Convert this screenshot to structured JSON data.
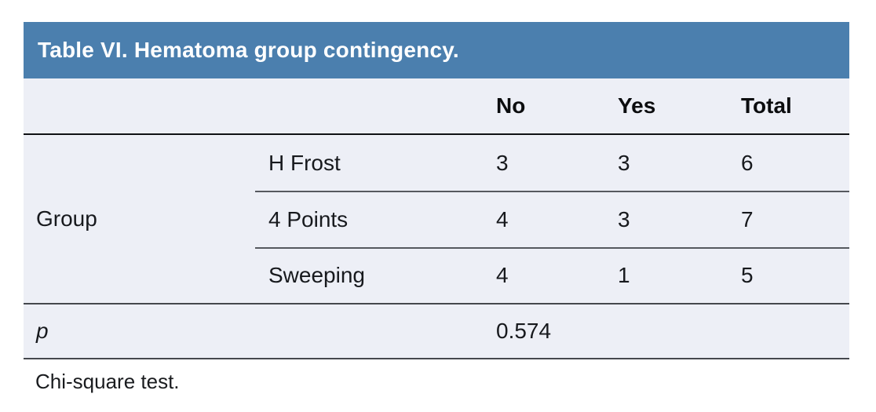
{
  "table": {
    "title": "Table VI. Hematoma group contingency.",
    "columns": {
      "c3": "No",
      "c4": "Yes",
      "c5": "Total"
    },
    "group_label": "Group",
    "rows": [
      {
        "label": "H Frost",
        "no": "3",
        "yes": "3",
        "total": "6"
      },
      {
        "label": "4 Points",
        "no": "4",
        "yes": "3",
        "total": "7"
      },
      {
        "label": "Sweeping",
        "no": "4",
        "yes": "1",
        "total": "5"
      }
    ],
    "p_row": {
      "label": "p",
      "value": "0.574"
    },
    "footnote": "Chi-square test.",
    "colors": {
      "title_bg": "#4b7fae",
      "title_text": "#ffffff",
      "row_bg": "#edeff6",
      "body_text": "#17191d"
    }
  },
  "chart_data": {
    "type": "table",
    "title": "Table VI. Hematoma group contingency.",
    "columns": [
      "",
      "",
      "No",
      "Yes",
      "Total"
    ],
    "rows": [
      [
        "Group",
        "H Frost",
        3,
        3,
        6
      ],
      [
        "Group",
        "4 Points",
        4,
        3,
        7
      ],
      [
        "Group",
        "Sweeping",
        4,
        1,
        5
      ],
      [
        "p",
        "",
        0.574,
        null,
        null
      ]
    ],
    "footnote": "Chi-square test."
  }
}
